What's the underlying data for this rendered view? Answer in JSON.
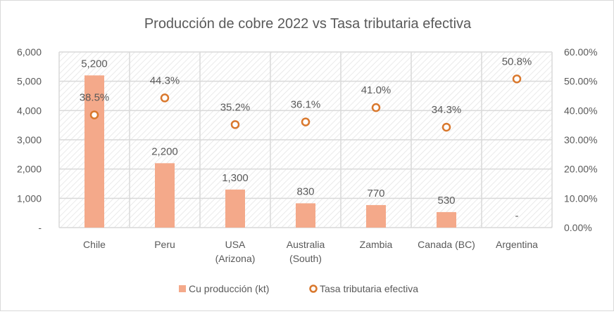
{
  "chart_data": {
    "type": "bar+scatter",
    "title": "Producción de cobre 2022 vs Tasa tributaria efectiva",
    "categories": [
      [
        "Chile"
      ],
      [
        "Peru"
      ],
      [
        "USA",
        "(Arizona)"
      ],
      [
        "Australia",
        "(South)"
      ],
      [
        "Zambia"
      ],
      [
        "Canada (BC)"
      ],
      [
        "Argentina"
      ]
    ],
    "series": [
      {
        "name": "Cu producción (kt)",
        "type": "bar",
        "axis": "left",
        "values": [
          5200,
          2200,
          1300,
          830,
          770,
          530,
          0
        ],
        "labels": [
          "5,200",
          "2,200",
          "1,300",
          "830",
          "770",
          "530",
          "-"
        ]
      },
      {
        "name": "Tasa tributaria efectiva",
        "type": "scatter",
        "axis": "right",
        "values": [
          38.5,
          44.3,
          35.2,
          36.1,
          41.0,
          34.3,
          50.8
        ],
        "labels": [
          "38.5%",
          "44.3%",
          "35.2%",
          "36.1%",
          "41.0%",
          "34.3%",
          "50.8%"
        ]
      }
    ],
    "left_axis": {
      "ylim": [
        0,
        6000
      ],
      "ticks": [
        "-",
        "1,000",
        "2,000",
        "3,000",
        "4,000",
        "5,000",
        "6,000"
      ]
    },
    "right_axis": {
      "ylim": [
        0,
        60
      ],
      "ticks": [
        "0.00%",
        "10.00%",
        "20.00%",
        "30.00%",
        "40.00%",
        "50.00%",
        "60.00%"
      ]
    },
    "grid": true,
    "legend": "bottom",
    "colors": {
      "bar": "#F4A98A",
      "marker": "#D9782D"
    }
  }
}
